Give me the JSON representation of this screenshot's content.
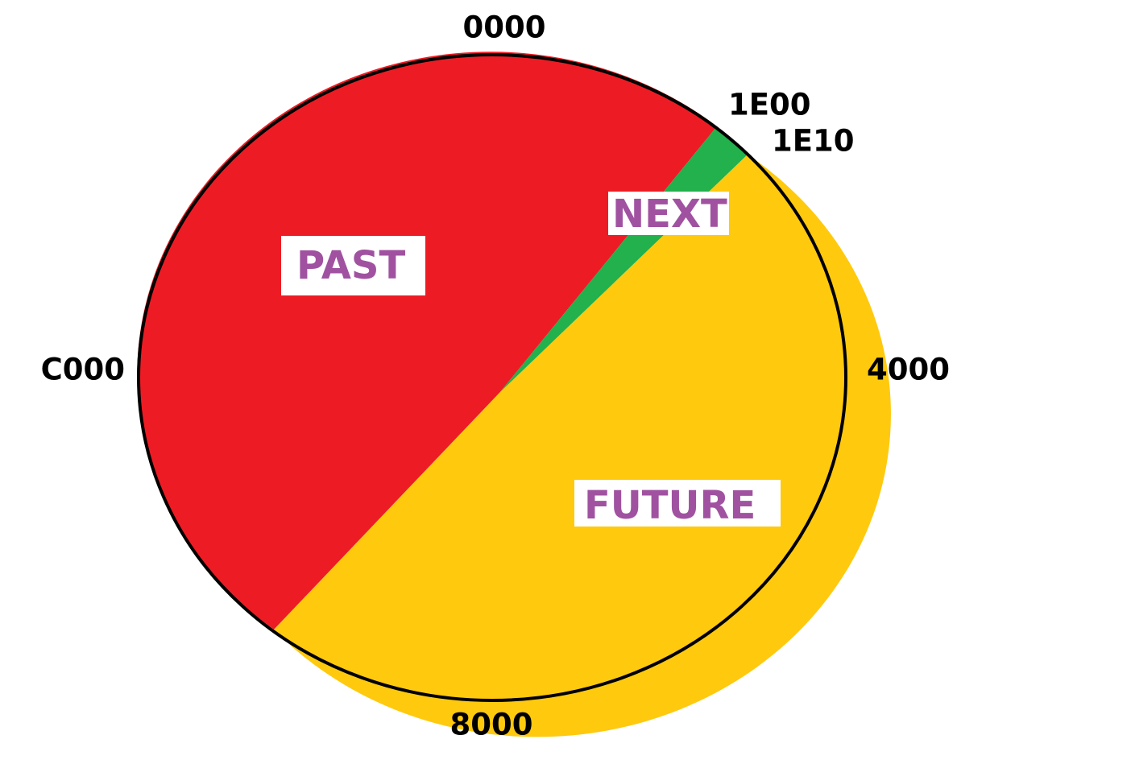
{
  "ring_labels": [
    "0000",
    "1E00",
    "1E10",
    "4000",
    "8000",
    "C000"
  ],
  "regions": [
    "PAST",
    "NEXT",
    "FUTURE"
  ]
}
